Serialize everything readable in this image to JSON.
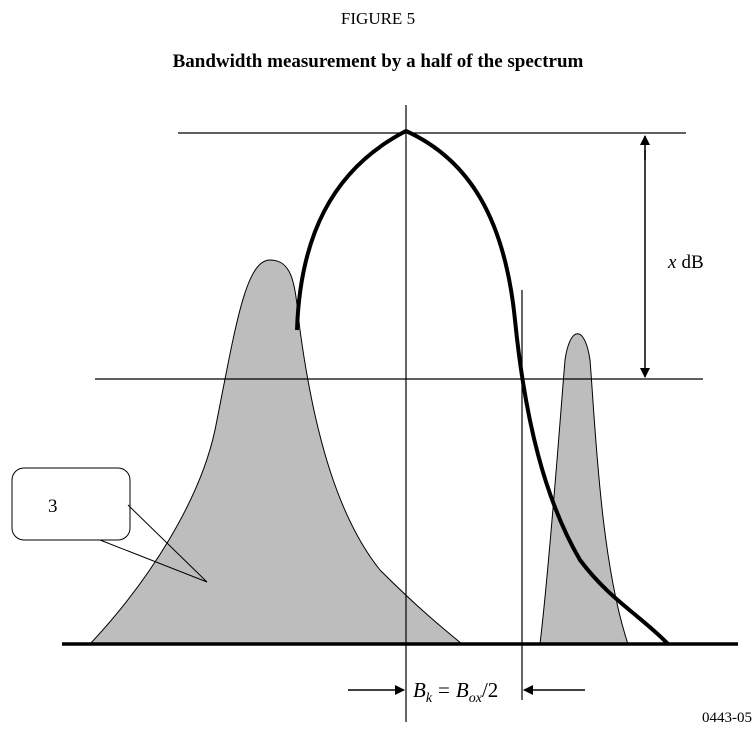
{
  "figure_label": "FIGURE 5",
  "title": "Bandwidth measurement by a half of the spectrum",
  "callout": "3",
  "level_label": {
    "var": "x",
    "unit": "dB"
  },
  "formula": {
    "b1": "B",
    "sub1": "k",
    "eq": "=",
    "b2": "B",
    "sub2": "ox",
    "tail": "/2"
  },
  "code": "0443-05"
}
